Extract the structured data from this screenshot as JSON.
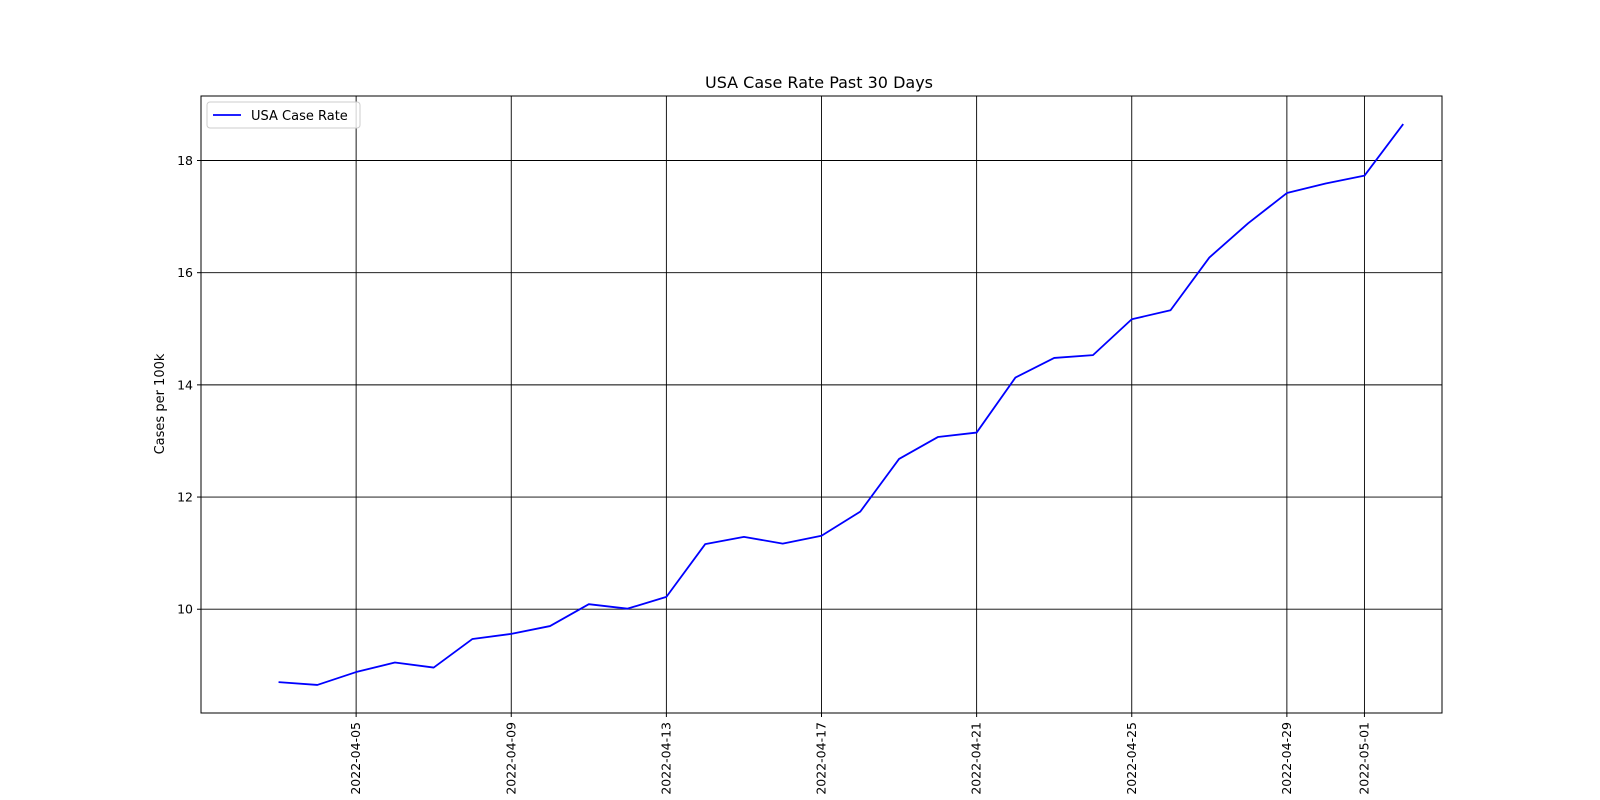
{
  "chart_data": {
    "type": "line",
    "title": "USA Case Rate Past 30 Days",
    "xlabel": "",
    "ylabel": "Cases per 100k",
    "x_ticks": [
      "2022-04-05",
      "2022-04-09",
      "2022-04-13",
      "2022-04-17",
      "2022-04-21",
      "2022-04-25",
      "2022-04-29",
      "2022-05-01"
    ],
    "y_ticks": [
      10,
      12,
      14,
      16,
      18
    ],
    "ylim": [
      8.15,
      19.15
    ],
    "xlim": [
      "2022-04-01",
      "2022-05-03"
    ],
    "grid": true,
    "legend_position": "upper left",
    "series": [
      {
        "name": "USA Case Rate",
        "color": "#0000ff",
        "x": [
          "2022-04-03",
          "2022-04-04",
          "2022-04-05",
          "2022-04-06",
          "2022-04-07",
          "2022-04-08",
          "2022-04-09",
          "2022-04-10",
          "2022-04-11",
          "2022-04-12",
          "2022-04-13",
          "2022-04-14",
          "2022-04-15",
          "2022-04-16",
          "2022-04-17",
          "2022-04-18",
          "2022-04-19",
          "2022-04-20",
          "2022-04-21",
          "2022-04-22",
          "2022-04-23",
          "2022-04-24",
          "2022-04-25",
          "2022-04-26",
          "2022-04-27",
          "2022-04-28",
          "2022-04-29",
          "2022-04-30",
          "2022-05-01",
          "2022-05-02"
        ],
        "values": [
          8.7,
          8.65,
          8.88,
          9.05,
          8.96,
          9.47,
          9.56,
          9.7,
          10.09,
          10.01,
          10.22,
          11.16,
          11.29,
          11.17,
          11.31,
          11.74,
          12.68,
          13.07,
          13.15,
          14.13,
          14.48,
          14.53,
          15.17,
          15.33,
          16.27,
          16.88,
          17.42,
          17.59,
          17.73,
          18.65
        ]
      }
    ]
  }
}
